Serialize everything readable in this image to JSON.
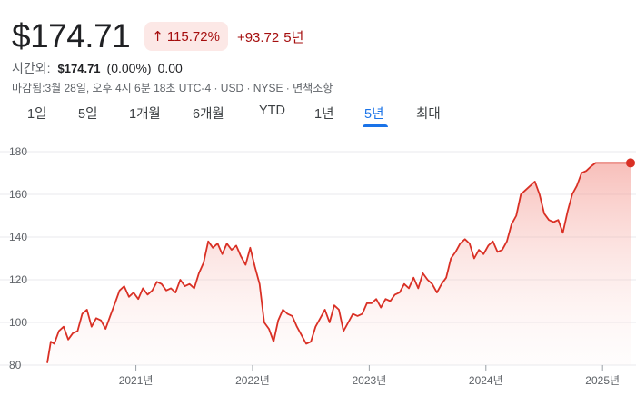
{
  "header": {
    "price": "$174.71",
    "change_pct": "115.72%",
    "change_abs": "+93.72",
    "period": "5년",
    "arrow_icon": "arrow-up-icon"
  },
  "after_hours": {
    "label": "시간외:",
    "price": "$174.71",
    "pct": "(0.00%)",
    "abs": "0.00"
  },
  "meta": {
    "text": "마감됨:3월 28일, 오후 4시 6분 18초 UTC-4 · USD · NYSE · 면책조항"
  },
  "tabs": [
    "1일",
    "5일",
    "1개월",
    "6개월",
    "YTD",
    "1년",
    "5년",
    "최대"
  ],
  "active_tab": "5년",
  "colors": {
    "line": "#d93025",
    "fill": "#fce8e6",
    "badge_bg": "#fce8e6",
    "badge_text": "#a50e0e",
    "active_tab": "#1a73e8",
    "grid": "#e8eaed"
  },
  "chart_data": {
    "type": "area",
    "title": "",
    "xlabel": "",
    "ylabel": "",
    "ylim": [
      80,
      180
    ],
    "yticks": [
      80,
      100,
      120,
      140,
      160,
      180
    ],
    "xticks": [
      {
        "label": "2021년",
        "x": 2021.0
      },
      {
        "label": "2022년",
        "x": 2022.0
      },
      {
        "label": "2023년",
        "x": 2023.0
      },
      {
        "label": "2024년",
        "x": 2024.0
      },
      {
        "label": "2025년",
        "x": 2025.0
      }
    ],
    "xlim": [
      2020.24,
      2025.24
    ],
    "grid": true,
    "legend": "none",
    "series": [
      {
        "x": [
          2020.24,
          2020.27,
          2020.3,
          2020.34,
          2020.38,
          2020.42,
          2020.46,
          2020.5,
          2020.54,
          2020.58,
          2020.62,
          2020.66,
          2020.7,
          2020.74,
          2020.78,
          2020.82,
          2020.86,
          2020.9,
          2020.94,
          2020.98,
          2021.02,
          2021.06,
          2021.1,
          2021.14,
          2021.18,
          2021.22,
          2021.26,
          2021.3,
          2021.34,
          2021.38,
          2021.42,
          2021.46,
          2021.5,
          2021.54,
          2021.58,
          2021.62,
          2021.66,
          2021.7,
          2021.74,
          2021.78,
          2021.82,
          2021.86,
          2021.9,
          2021.94,
          2021.98,
          2022.02,
          2022.06,
          2022.1,
          2022.14,
          2022.18,
          2022.22,
          2022.26,
          2022.3,
          2022.34,
          2022.38,
          2022.42,
          2022.46,
          2022.5,
          2022.54,
          2022.58,
          2022.62,
          2022.66,
          2022.7,
          2022.74,
          2022.78,
          2022.82,
          2022.86,
          2022.9,
          2022.94,
          2022.98,
          2023.02,
          2023.06,
          2023.1,
          2023.14,
          2023.18,
          2023.22,
          2023.26,
          2023.3,
          2023.34,
          2023.38,
          2023.42,
          2023.46,
          2023.5,
          2023.54,
          2023.58,
          2023.62,
          2023.66,
          2023.7,
          2023.74,
          2023.78,
          2023.82,
          2023.86,
          2023.9,
          2023.94,
          2023.98,
          2024.02,
          2024.06,
          2024.1,
          2024.14,
          2024.18,
          2024.22,
          2024.26,
          2024.3,
          2024.34,
          2024.38,
          2024.42,
          2024.46,
          2024.5,
          2024.54,
          2024.58,
          2024.62,
          2024.66,
          2024.7,
          2024.74,
          2024.78,
          2024.82,
          2024.86,
          2024.9,
          2024.94,
          2024.98,
          2025.02,
          2025.06,
          2025.1,
          2025.14,
          2025.18,
          2025.22,
          2025.24
        ],
        "values": [
          81,
          91,
          90,
          96,
          98,
          92,
          95,
          96,
          104,
          106,
          98,
          102,
          101,
          97,
          103,
          109,
          115,
          117,
          112,
          114,
          111,
          116,
          113,
          115,
          119,
          118,
          115,
          116,
          114,
          120,
          117,
          118,
          116,
          123,
          128,
          138,
          135,
          137,
          132,
          137,
          134,
          136,
          131,
          127,
          135,
          126,
          118,
          100,
          97,
          91,
          101,
          106,
          104,
          103,
          98,
          94,
          90,
          91,
          98,
          102,
          106,
          100,
          108,
          106,
          96,
          100,
          104,
          103,
          104,
          109,
          109,
          111,
          107,
          111,
          110,
          113,
          114,
          118,
          116,
          121,
          116,
          123,
          120,
          118,
          114,
          118,
          121,
          130,
          133,
          137,
          139,
          137,
          130,
          134,
          132,
          136,
          138,
          133,
          134,
          138,
          146,
          150,
          160,
          162,
          164,
          166,
          160,
          151,
          148,
          147,
          148,
          142,
          152,
          160,
          164,
          170,
          171,
          173,
          174.71,
          174.71,
          174.71,
          174.71,
          174.71,
          174.71,
          174.71,
          174.71,
          174.71
        ]
      }
    ]
  }
}
